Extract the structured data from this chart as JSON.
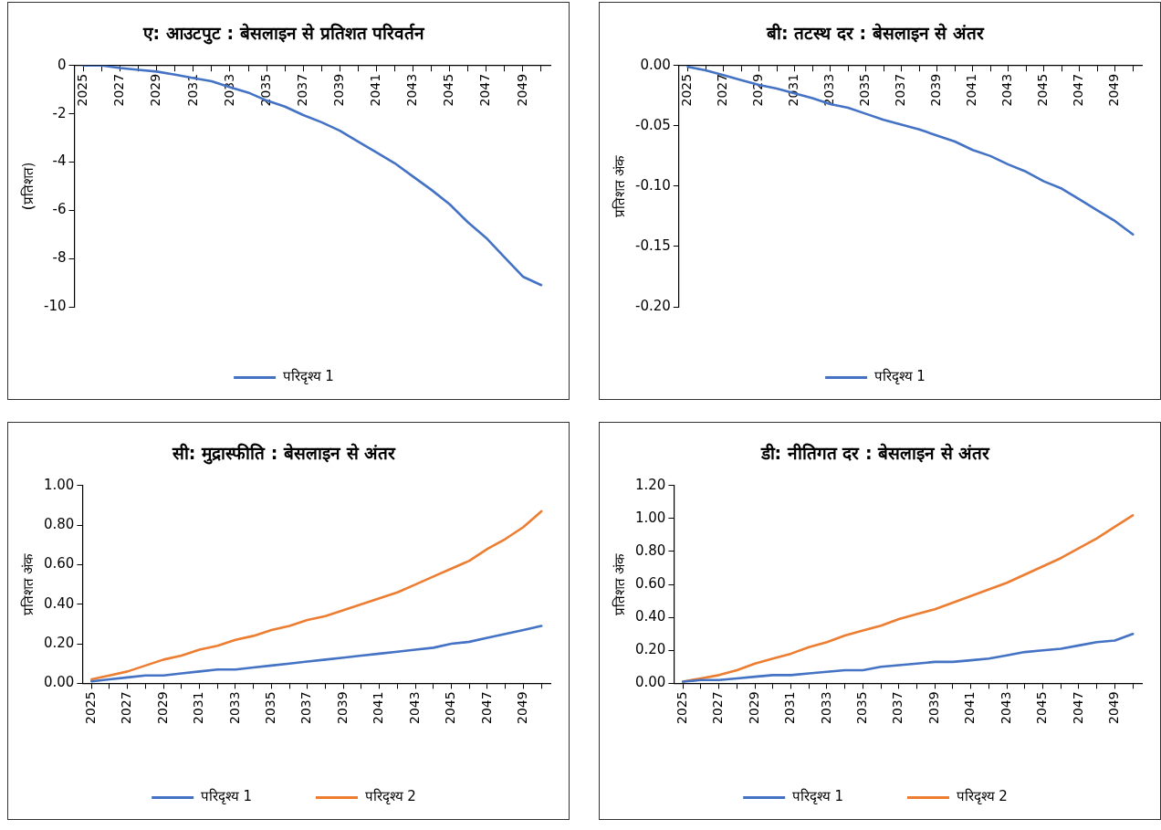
{
  "chart_data": [
    {
      "type": "line",
      "title": "ए: आउटपुट : बेसलाइन से प्रतिशत परिवर्तन",
      "ylabel": "(प्रतिशत)",
      "categories": [
        "2025",
        null,
        "2027",
        null,
        "2029",
        null,
        "2031",
        null,
        "2033",
        null,
        "2035",
        null,
        "2037",
        null,
        "2039",
        null,
        "2041",
        null,
        "2043",
        null,
        "2045",
        null,
        "2047",
        null,
        "2049",
        null
      ],
      "series": [
        {
          "name": "परिदृश्य 1",
          "color": "#4472c4",
          "values": [
            0,
            0,
            -0.1,
            -0.18,
            -0.25,
            -0.38,
            -0.52,
            -0.65,
            -0.9,
            -1.12,
            -1.45,
            -1.7,
            -2.05,
            -2.35,
            -2.7,
            -3.15,
            -3.6,
            -4.05,
            -4.6,
            -5.15,
            -5.75,
            -6.5,
            -7.15,
            -7.95,
            -8.75,
            -9.1
          ]
        }
      ],
      "ylim": [
        -10,
        0
      ],
      "yticks": [
        0,
        -2,
        -4,
        -6,
        -8,
        -10
      ],
      "grid": false,
      "legend": "bottom",
      "marker": "none"
    },
    {
      "type": "line",
      "title": "बी: तटस्थ दर : बेसलाइन से अंतर",
      "ylabel": "प्रतिशत अंक",
      "categories": [
        "2025",
        null,
        "2027",
        null,
        "2029",
        null,
        "2031",
        null,
        "2033",
        null,
        "2035",
        null,
        "2037",
        null,
        "2039",
        null,
        "2041",
        null,
        "2043",
        null,
        "2045",
        null,
        "2047",
        null,
        "2049",
        null
      ],
      "series": [
        {
          "name": "परिदृश्य 1",
          "color": "#4472c4",
          "values": [
            -0.001,
            -0.004,
            -0.008,
            -0.012,
            -0.016,
            -0.019,
            -0.023,
            -0.027,
            -0.032,
            -0.035,
            -0.04,
            -0.045,
            -0.049,
            -0.053,
            -0.058,
            -0.063,
            -0.07,
            -0.075,
            -0.082,
            -0.088,
            -0.096,
            -0.102,
            -0.111,
            -0.12,
            -0.129,
            -0.14
          ]
        }
      ],
      "ylim": [
        -0.2,
        0
      ],
      "yticks": [
        {
          "value": 0,
          "label": "0.00"
        },
        {
          "value": -0.05,
          "label": "-0.05"
        },
        {
          "value": -0.1,
          "label": "-0.10"
        },
        {
          "value": -0.15,
          "label": "-0.15"
        },
        {
          "value": -0.2,
          "label": "-0.20"
        }
      ],
      "grid": false,
      "legend": "bottom",
      "marker": "none"
    },
    {
      "type": "line",
      "title": "सी: मुद्रास्फीति : बेसलाइन से अंतर",
      "ylabel": "प्रतिशत अंक",
      "categories": [
        "2025",
        null,
        "2027",
        null,
        "2029",
        null,
        "2031",
        null,
        "2033",
        null,
        "2035",
        null,
        "2037",
        null,
        "2039",
        null,
        "2041",
        null,
        "2043",
        null,
        "2045",
        null,
        "2047",
        null,
        "2049",
        null
      ],
      "series": [
        {
          "name": "परिदृश्य 1",
          "color": "#4472c4",
          "values": [
            0.01,
            0.02,
            0.03,
            0.04,
            0.04,
            0.05,
            0.06,
            0.07,
            0.07,
            0.08,
            0.09,
            0.1,
            0.11,
            0.12,
            0.13,
            0.14,
            0.15,
            0.16,
            0.17,
            0.18,
            0.2,
            0.21,
            0.23,
            0.25,
            0.27,
            0.29
          ]
        },
        {
          "name": "परिदृश्य 2",
          "color": "#ed7d31",
          "values": [
            0.02,
            0.04,
            0.06,
            0.09,
            0.12,
            0.14,
            0.17,
            0.19,
            0.22,
            0.24,
            0.27,
            0.29,
            0.32,
            0.34,
            0.37,
            0.4,
            0.43,
            0.46,
            0.5,
            0.54,
            0.58,
            0.62,
            0.68,
            0.73,
            0.79,
            0.87
          ]
        }
      ],
      "ylim": [
        0,
        1
      ],
      "yticks": [
        {
          "value": 0,
          "label": "0.00"
        },
        {
          "value": 0.2,
          "label": "0.20"
        },
        {
          "value": 0.4,
          "label": "0.40"
        },
        {
          "value": 0.6,
          "label": "0.60"
        },
        {
          "value": 0.8,
          "label": "0.80"
        },
        {
          "value": 1,
          "label": "1.00"
        }
      ],
      "grid": false,
      "legend": "bottom",
      "marker": "none"
    },
    {
      "type": "line",
      "title": "डी: नीतिगत दर : बेसलाइन से अंतर",
      "ylabel": "प्रतिशत अंक",
      "categories": [
        "2025",
        null,
        "2027",
        null,
        "2029",
        null,
        "2031",
        null,
        "2033",
        null,
        "2035",
        null,
        "2037",
        null,
        "2039",
        null,
        "2041",
        null,
        "2043",
        null,
        "2045",
        null,
        "2047",
        null,
        "2049",
        null
      ],
      "series": [
        {
          "name": "परिदृश्य 1",
          "color": "#4472c4",
          "values": [
            0.01,
            0.02,
            0.02,
            0.03,
            0.04,
            0.05,
            0.05,
            0.06,
            0.07,
            0.08,
            0.08,
            0.1,
            0.11,
            0.12,
            0.13,
            0.13,
            0.14,
            0.15,
            0.17,
            0.19,
            0.2,
            0.21,
            0.23,
            0.25,
            0.26,
            0.3
          ]
        },
        {
          "name": "परिदृश्य 2",
          "color": "#ed7d31",
          "values": [
            0.01,
            0.03,
            0.05,
            0.08,
            0.12,
            0.15,
            0.18,
            0.22,
            0.25,
            0.29,
            0.32,
            0.35,
            0.39,
            0.42,
            0.45,
            0.49,
            0.53,
            0.57,
            0.61,
            0.66,
            0.71,
            0.76,
            0.82,
            0.88,
            0.95,
            1.02
          ]
        }
      ],
      "ylim": [
        0,
        1.2
      ],
      "yticks": [
        {
          "value": 0,
          "label": "0.00"
        },
        {
          "value": 0.2,
          "label": "0.20"
        },
        {
          "value": 0.4,
          "label": "0.40"
        },
        {
          "value": 0.6,
          "label": "0.60"
        },
        {
          "value": 0.8,
          "label": "0.80"
        },
        {
          "value": 1,
          "label": "1.00"
        },
        {
          "value": 1.2,
          "label": "1.20"
        }
      ],
      "grid": false,
      "legend": "bottom",
      "marker": "none"
    }
  ]
}
